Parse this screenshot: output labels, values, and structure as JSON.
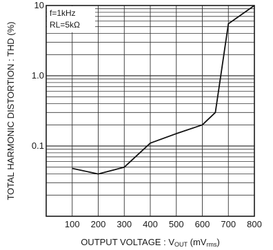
{
  "chart_data": {
    "type": "line",
    "title": "",
    "xlabel": "OUTPUT VOLTAGE : V",
    "xlabel_sub": "OUT",
    "xlabel_unit_open": " (mV",
    "xlabel_unit_sub": "rms",
    "xlabel_unit_close": ")",
    "ylabel": "TOTAL HARMONIC DISTORTION : THD (%)",
    "xlim": [
      0,
      800
    ],
    "ylim": [
      0.01,
      10
    ],
    "yscale": "log",
    "grid": true,
    "x_ticks": [
      100,
      200,
      300,
      400,
      500,
      600,
      700,
      800
    ],
    "x_tick_labels": [
      "100",
      "200",
      "300",
      "400",
      "500",
      "600",
      "700",
      "800"
    ],
    "y_ticks": [
      10,
      1,
      0.1
    ],
    "y_tick_labels": [
      "10",
      "1.0",
      "0.1"
    ],
    "annotations": [
      {
        "lines": [
          "f=1kHz",
          "RL=5kΩ"
        ],
        "position": "top-left"
      }
    ],
    "series": [
      {
        "x": [
          100,
          200,
          300,
          400,
          500,
          600,
          650,
          700,
          800
        ],
        "y": [
          0.048,
          0.04,
          0.05,
          0.11,
          0.15,
          0.2,
          0.3,
          5.5,
          10
        ]
      }
    ]
  }
}
